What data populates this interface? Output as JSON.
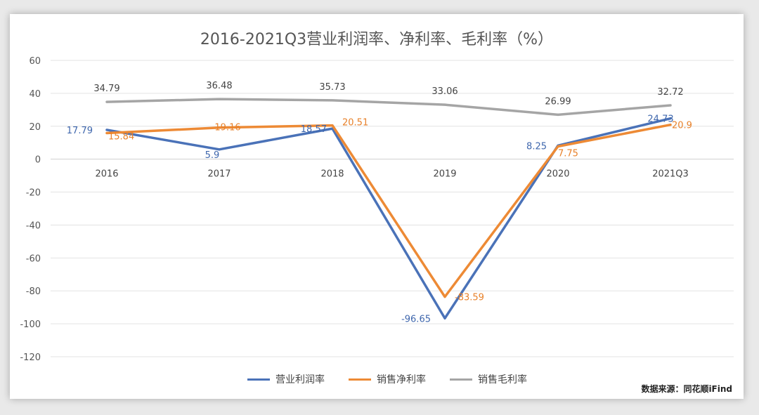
{
  "chart_data": {
    "type": "line",
    "title": "2016-2021Q3营业利润率、净利率、毛利率（%）",
    "categories": [
      "2016",
      "2017",
      "2018",
      "2019",
      "2020",
      "2021Q3"
    ],
    "yticks": [
      60,
      40,
      20,
      0,
      -20,
      -40,
      -60,
      -80,
      -100,
      -120
    ],
    "ylim": [
      -120,
      60
    ],
    "grid": true,
    "legend_position": "bottom",
    "series": [
      {
        "name": "营业利润率",
        "color": "#4a72b8",
        "values": [
          17.79,
          5.9,
          18.57,
          -96.65,
          8.25,
          24.73
        ],
        "labels": [
          "17.79",
          "5.9",
          "18.57",
          "-96.65",
          "8.25",
          "24.73"
        ]
      },
      {
        "name": "销售净利率",
        "color": "#ed8a35",
        "values": [
          15.84,
          19.16,
          20.51,
          -83.59,
          7.75,
          20.9
        ],
        "labels": [
          "15.84",
          "19.16",
          "20.51",
          "-83.59",
          "7.75",
          "20.9"
        ]
      },
      {
        "name": "销售毛利率",
        "color": "#a5a5a5",
        "values": [
          34.79,
          36.48,
          35.73,
          33.06,
          26.99,
          32.72
        ],
        "labels": [
          "34.79",
          "36.48",
          "35.73",
          "33.06",
          "26.99",
          "32.72"
        ]
      }
    ],
    "source": "数据来源：同花顺iFind"
  }
}
